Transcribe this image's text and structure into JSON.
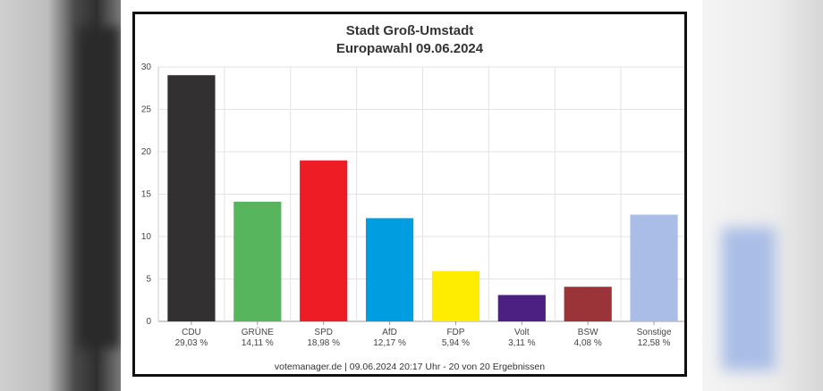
{
  "chart_data": {
    "type": "bar",
    "title": "Stadt Groß-Umstadt",
    "subtitle": "Europawahl 09.06.2024",
    "categories": [
      "CDU",
      "GRÜNE",
      "SPD",
      "AfD",
      "FDP",
      "Volt",
      "BSW",
      "Sonstige"
    ],
    "values": [
      29.03,
      14.11,
      18.98,
      12.17,
      5.94,
      3.11,
      4.08,
      12.58
    ],
    "value_labels": [
      "29,03 %",
      "14,11 %",
      "18,98 %",
      "12,17 %",
      "5,94 %",
      "3,11 %",
      "4,08 %",
      "12,58 %"
    ],
    "colors": [
      "#333031",
      "#57b55e",
      "#ee1c25",
      "#009ee0",
      "#ffed00",
      "#4b2082",
      "#9b3439",
      "#a9bde6"
    ],
    "ylim": [
      0,
      30
    ],
    "yticks": [
      0,
      5,
      10,
      15,
      20,
      25,
      30
    ],
    "grid": true,
    "xlabel": "",
    "ylabel": ""
  },
  "footer": "votemanager.de | 09.06.2024 20:17 Uhr - 20 von 20 Ergebnissen"
}
